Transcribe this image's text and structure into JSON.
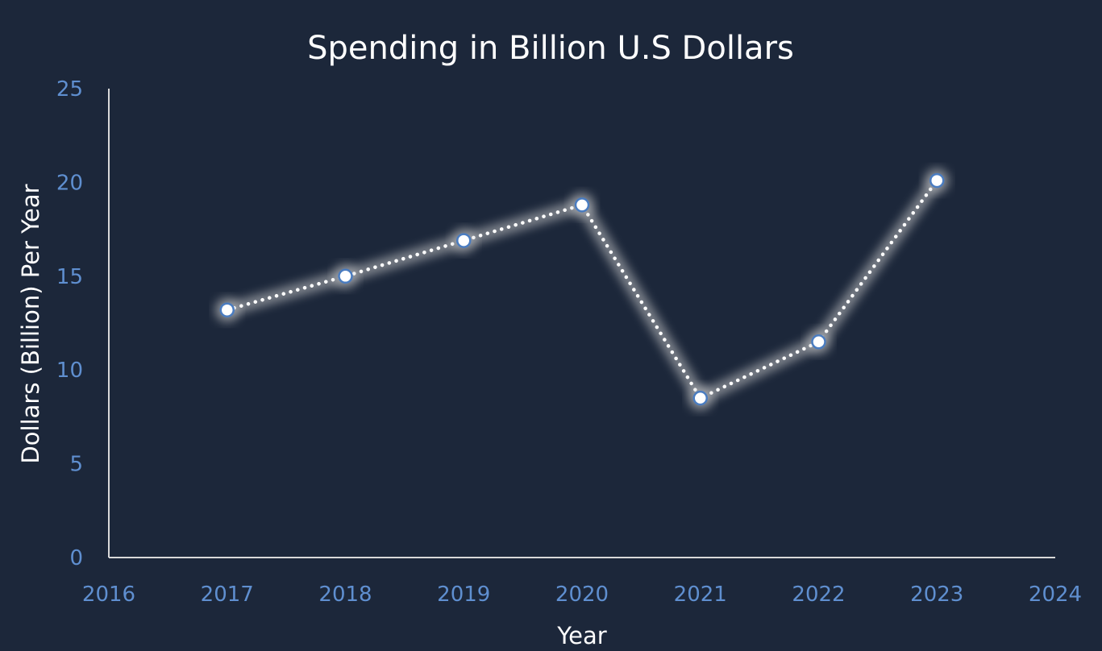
{
  "chart_data": {
    "type": "scatter",
    "title": "Spending in Billion U.S Dollars",
    "xlabel": "Year",
    "ylabel": "Dollars (Billion) Per Year",
    "xlim": [
      2016,
      2024
    ],
    "ylim": [
      0,
      25
    ],
    "xticks": [
      2016,
      2017,
      2018,
      2019,
      2020,
      2021,
      2022,
      2023,
      2024
    ],
    "yticks": [
      0,
      5,
      10,
      15,
      20,
      25
    ],
    "grid": false,
    "series": [
      {
        "x": [
          2017,
          2018,
          2019,
          2020,
          2021,
          2022,
          2023
        ],
        "y": [
          13.2,
          15,
          16.9,
          18.8,
          8.5,
          11.5,
          20.1
        ],
        "line": "dotted",
        "markers": true
      }
    ],
    "colors": {
      "background": "#1c273a",
      "axis": "#d9d9d9",
      "tick_label": "#5f8fd0",
      "text": "#ffffff",
      "line": "#ffffff",
      "marker_fill": "#ffffff",
      "marker_edge": "#4a7cc0",
      "glow": "#d0d0d0"
    }
  }
}
